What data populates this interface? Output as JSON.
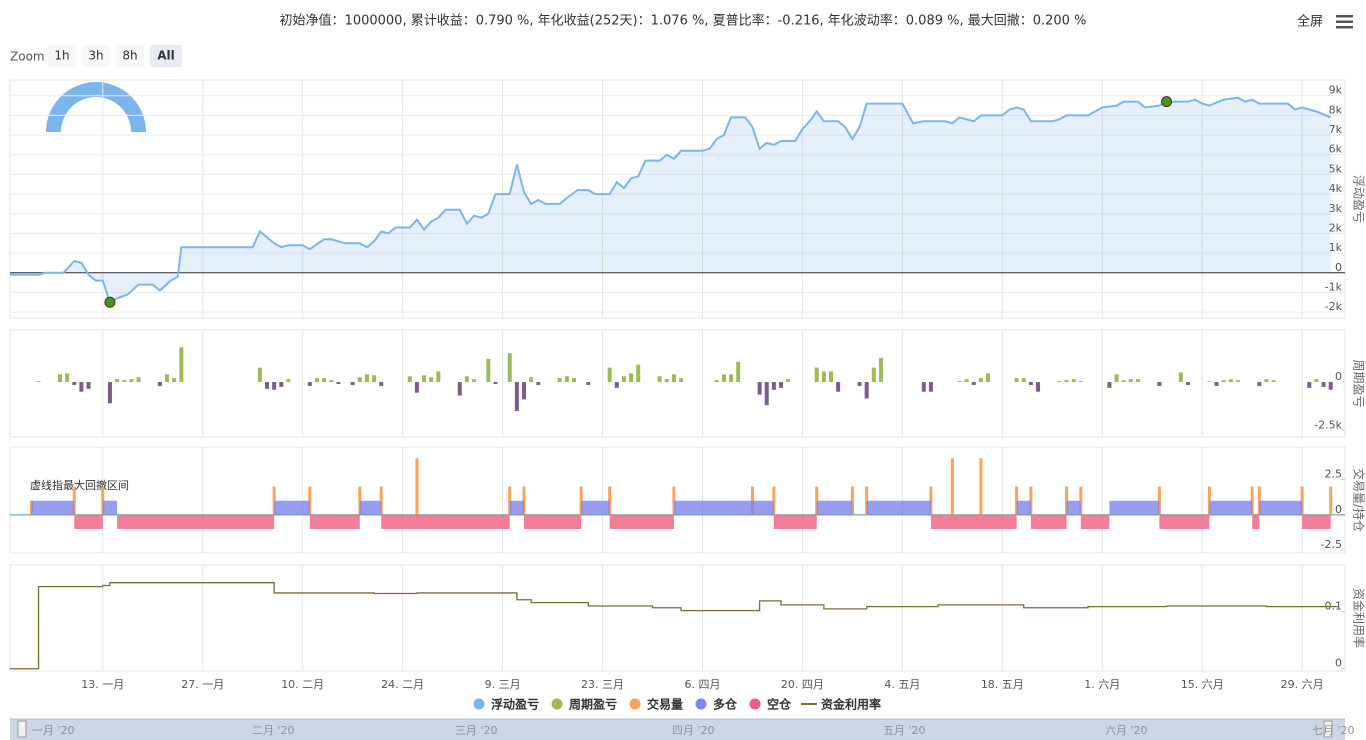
{
  "header": {
    "stats": "初始净值：1000000, 累计收益：0.790 %, 年化收益(252天)：1.076 %, 夏普比率：-0.216, 年化波动率：0.089 %, 最大回撤：0.200 %",
    "fullscreen": "全屏"
  },
  "zoom": {
    "label": "Zoom",
    "buttons": [
      "1h",
      "3h",
      "8h",
      "All"
    ]
  },
  "chart_data": [
    {
      "type": "area",
      "ylabel": "浮动盈亏",
      "ylim": [
        -2300,
        9800
      ],
      "yticks": [
        {
          "value": -2000,
          "label": "-2k"
        },
        {
          "value": -1000,
          "label": "-1k"
        },
        0,
        {
          "value": 1000,
          "label": "1k"
        },
        {
          "value": 2000,
          "label": "2k"
        },
        {
          "value": 3000,
          "label": "3k"
        },
        {
          "value": 4000,
          "label": "4k"
        },
        {
          "value": 5000,
          "label": "5k"
        },
        {
          "value": 6000,
          "label": "6k"
        },
        {
          "value": 7000,
          "label": "7k"
        },
        {
          "value": 8000,
          "label": "8k"
        },
        {
          "value": 9000,
          "label": "9k"
        }
      ],
      "grid": true,
      "series": [
        {
          "name": "浮动盈亏",
          "color": "#7cb5ec",
          "x": [
            0,
            4,
            5,
            7.5,
            9,
            10,
            11,
            12,
            13,
            14,
            15,
            16.5,
            18,
            20,
            21,
            22.5,
            23.5,
            24,
            34,
            35,
            37,
            38,
            39,
            41,
            42,
            44,
            45,
            47,
            49,
            50,
            51,
            52,
            53,
            54,
            56,
            57,
            58,
            59,
            60,
            61,
            63,
            64,
            65,
            66,
            67,
            68,
            70,
            71,
            72,
            73,
            74,
            75,
            77,
            78,
            79.5,
            81,
            82,
            84,
            85,
            86,
            87,
            88,
            89,
            91,
            92,
            93,
            94,
            97,
            98,
            99,
            100,
            101,
            103,
            104,
            105,
            106,
            107,
            108,
            110,
            111,
            112,
            113,
            114,
            116,
            117,
            118,
            119,
            120,
            125,
            126.5,
            128,
            131,
            132,
            133,
            135,
            136,
            139,
            140,
            141,
            142,
            143,
            146,
            147,
            148,
            151,
            153,
            155,
            156,
            158,
            159,
            161,
            162,
            165,
            166,
            167,
            168,
            170,
            172,
            173,
            174,
            175,
            179,
            180,
            181,
            183,
            185
          ],
          "values": [
            -100,
            -100,
            0,
            0,
            600,
            500,
            -100,
            -400,
            -400,
            -1500,
            -1300,
            -1100,
            -600,
            -600,
            -900,
            -400,
            -200,
            1300,
            1300,
            2100,
            1500,
            1300,
            1400,
            1400,
            1200,
            1700,
            1700,
            1500,
            1500,
            1300,
            1600,
            2100,
            2000,
            2300,
            2300,
            2700,
            2200,
            2600,
            2800,
            3200,
            3200,
            2500,
            2900,
            2800,
            3000,
            4000,
            4000,
            5500,
            4100,
            3500,
            3700,
            3500,
            3500,
            3800,
            4200,
            4200,
            4000,
            4000,
            4600,
            4300,
            4800,
            4900,
            5700,
            5700,
            6000,
            5800,
            6200,
            6200,
            6300,
            6800,
            7000,
            7900,
            7900,
            7400,
            6300,
            6600,
            6500,
            6700,
            6700,
            7300,
            7700,
            8200,
            7700,
            7700,
            7400,
            6800,
            7400,
            8600,
            8600,
            7600,
            7700,
            7700,
            7600,
            7900,
            7700,
            8000,
            8000,
            8300,
            8400,
            8300,
            7700,
            7700,
            7800,
            8000,
            8000,
            8400,
            8500,
            8700,
            8700,
            8400,
            8500,
            8700,
            8700,
            8800,
            8600,
            8500,
            8800,
            8900,
            8700,
            8800,
            8600,
            8600,
            8300,
            8400,
            8200,
            7900
          ]
        }
      ],
      "markers": [
        {
          "x": 14,
          "value": -1500,
          "color": "#3d9a1f"
        },
        {
          "x": 162,
          "value": 8700,
          "color": "#3d9a1f"
        }
      ]
    },
    {
      "type": "bar",
      "ylabel": "周期盈亏",
      "ylim": [
        -2850,
        2700
      ],
      "yticks": [
        {
          "value": -2500,
          "label": "-2.5k"
        },
        0
      ],
      "series": [
        {
          "name": "周期盈亏",
          "color": "#9bbb59",
          "negative_color": "#7e5b8d",
          "x": [
            4,
            7,
            8,
            9,
            10,
            11,
            14,
            15,
            16,
            17,
            18,
            21,
            22,
            23,
            24,
            35,
            36,
            37,
            38,
            39,
            42,
            43,
            44,
            45,
            46,
            48,
            49,
            50,
            51,
            52,
            56,
            57,
            58,
            59,
            60,
            63,
            64,
            65,
            67,
            68,
            70,
            71,
            72,
            73,
            74,
            77,
            78,
            79,
            81,
            84,
            85,
            86,
            87,
            88,
            91,
            92,
            93,
            94,
            99,
            100,
            101,
            102,
            105,
            106,
            107,
            108,
            109,
            113,
            114,
            115,
            116,
            119,
            120,
            121,
            122,
            128,
            129,
            133,
            134,
            135,
            136,
            137,
            141,
            142,
            143,
            144,
            147,
            148,
            149,
            150,
            154,
            155,
            156,
            157,
            158,
            161,
            164,
            165,
            168,
            169,
            170,
            171,
            172,
            175,
            176,
            177,
            182,
            183,
            184,
            185
          ],
          "values": [
            50,
            400,
            450,
            -150,
            -500,
            -350,
            -1100,
            150,
            100,
            150,
            250,
            -200,
            400,
            200,
            1800,
            750,
            -350,
            -400,
            -250,
            150,
            -200,
            200,
            200,
            100,
            -100,
            -150,
            250,
            400,
            350,
            -200,
            300,
            -550,
            350,
            250,
            550,
            -700,
            300,
            150,
            1200,
            -100,
            1500,
            -1500,
            -900,
            250,
            -150,
            200,
            300,
            200,
            -150,
            750,
            -300,
            300,
            450,
            900,
            300,
            150,
            400,
            200,
            100,
            400,
            400,
            1050,
            -650,
            -1200,
            -400,
            -300,
            150,
            750,
            550,
            550,
            -500,
            -200,
            -850,
            750,
            1250,
            -500,
            -500,
            50,
            150,
            -150,
            200,
            450,
            200,
            200,
            -150,
            -500,
            50,
            100,
            150,
            50,
            -300,
            400,
            100,
            150,
            150,
            -200,
            500,
            -150,
            50,
            -200,
            100,
            150,
            100,
            -200,
            150,
            100,
            -300,
            150,
            -250,
            -400
          ]
        }
      ]
    },
    {
      "type": "position",
      "ylabel": "交易量/持仓",
      "ylim": [
        -2.7,
        4.8
      ],
      "yticks": [
        -2.5,
        0,
        2.5
      ],
      "annotation": "虚线指最大回撤区间",
      "series": [
        {
          "name": "交易量",
          "color": "#f7a35c",
          "x": [
            3,
            9,
            13,
            37,
            42,
            49,
            52,
            57,
            70,
            72,
            80,
            84,
            93,
            104,
            107,
            113,
            118,
            120,
            129,
            132,
            136,
            141,
            143,
            148,
            150,
            161,
            168,
            174,
            175,
            181,
            185
          ],
          "values": [
            1,
            2,
            2,
            2,
            2,
            2,
            2,
            4,
            2,
            2,
            2,
            2,
            2,
            2,
            2,
            2,
            2,
            2,
            2,
            4,
            4,
            2,
            2,
            2,
            2,
            2,
            2,
            2,
            2,
            2,
            2
          ]
        },
        {
          "name": "多仓",
          "color": "#8085e9",
          "x": [
            3,
            13,
            37,
            49,
            70,
            80,
            93,
            113,
            120,
            141,
            148,
            154,
            168,
            175
          ],
          "x_end": [
            9,
            15,
            42,
            52,
            72,
            84,
            107,
            118,
            129,
            143,
            150,
            161,
            174,
            181
          ],
          "values": [
            1,
            1,
            1,
            1,
            1,
            1,
            1,
            1,
            1,
            1,
            1,
            1,
            1,
            1
          ]
        },
        {
          "name": "空仓",
          "color": "#f15c80",
          "x": [
            9,
            15,
            42,
            52,
            72,
            84,
            107,
            129,
            143,
            150,
            161,
            174,
            181
          ],
          "x_end": [
            13,
            37,
            49,
            70,
            80,
            93,
            113,
            141,
            148,
            154,
            168,
            175,
            185
          ],
          "values": [
            -1,
            -1,
            -1,
            -1,
            -1,
            -1,
            -1,
            -1,
            -1,
            -1,
            -1,
            -1,
            -1
          ]
        }
      ]
    },
    {
      "type": "step",
      "ylabel": "资金利用率",
      "ylim": [
        -0.004,
        0.182
      ],
      "yticks": [
        0,
        0.1
      ],
      "xlim": [
        0,
        187
      ],
      "xticks": [
        {
          "value": 13,
          "label": "13. 一月"
        },
        {
          "value": 27,
          "label": "27. 一月"
        },
        {
          "value": 41,
          "label": "10. 二月"
        },
        {
          "value": 55,
          "label": "24. 二月"
        },
        {
          "value": 69,
          "label": "9. 三月"
        },
        {
          "value": 83,
          "label": "23. 三月"
        },
        {
          "value": 97,
          "label": "6. 四月"
        },
        {
          "value": 111,
          "label": "20. 四月"
        },
        {
          "value": 125,
          "label": "4. 五月"
        },
        {
          "value": 139,
          "label": "18. 五月"
        },
        {
          "value": 153,
          "label": "1. 六月"
        },
        {
          "value": 167,
          "label": "15. 六月"
        },
        {
          "value": 181,
          "label": "29. 六月"
        }
      ],
      "series": [
        {
          "name": "资金利用率",
          "color": "#7d6b3a",
          "x": [
            0,
            4,
            13,
            14,
            37,
            51,
            57,
            71,
            73,
            81,
            90,
            94,
            105,
            108,
            114,
            120,
            130,
            142,
            151,
            162,
            176,
            186
          ],
          "values": [
            0,
            0.144,
            0.146,
            0.151,
            0.133,
            0.132,
            0.133,
            0.121,
            0.116,
            0.11,
            0.107,
            0.102,
            0.119,
            0.112,
            0.105,
            0.109,
            0.112,
            0.107,
            0.109,
            0.11,
            0.109,
            0.109
          ]
        }
      ]
    }
  ],
  "navigator": {
    "labels": [
      "一月 '20",
      "二月 '20",
      "三月 '20",
      "四月 '20",
      "五月 '20",
      "六月 '20",
      "七月 '20"
    ]
  }
}
